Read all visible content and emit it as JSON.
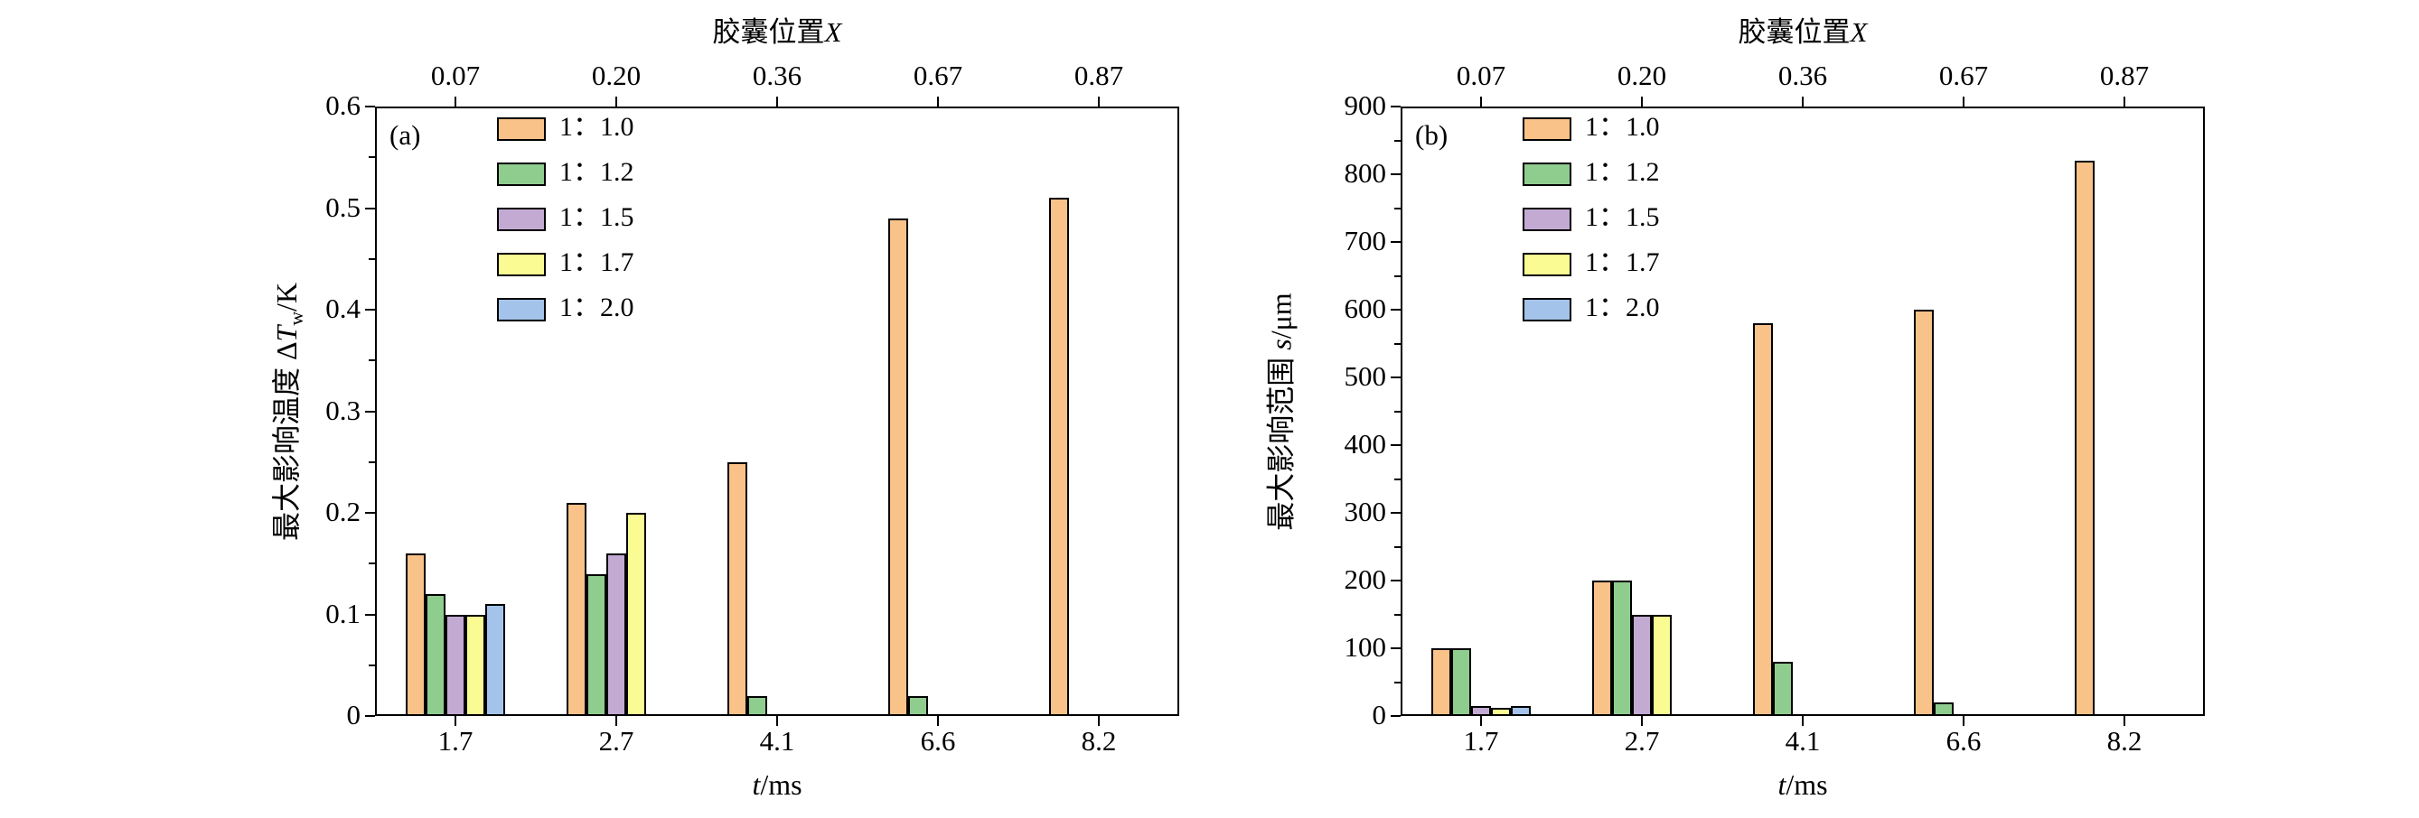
{
  "figure": {
    "background": "#ffffff"
  },
  "legend": {
    "position": "top-left-inside",
    "items": [
      {
        "label": "1：1.0",
        "color": "#F8C289"
      },
      {
        "label": "1：1.2",
        "color": "#8FCD8F"
      },
      {
        "label": "1：1.5",
        "color": "#C3AAD3"
      },
      {
        "label": "1：1.7",
        "color": "#FBFB93"
      },
      {
        "label": "1：2.0",
        "color": "#A4C3EA"
      }
    ]
  },
  "chart_data": [
    {
      "type": "bar",
      "panel_label": "(a)",
      "top_title": "胶囊位置X",
      "top_title_parts": [
        {
          "t": "胶囊位置"
        },
        {
          "i": "X"
        }
      ],
      "top_tick_labels": [
        "0.07",
        "0.20",
        "0.36",
        "0.67",
        "0.87"
      ],
      "categories": [
        "1.7",
        "2.7",
        "4.1",
        "6.6",
        "8.2"
      ],
      "xlabel": "t/ms",
      "xlabel_parts": [
        {
          "i": "t"
        },
        {
          "t": "/ms"
        }
      ],
      "ylabel": "最大影响温度 ΔTw/K",
      "ylabel_parts": [
        {
          "t": "最大影响温度 Δ"
        },
        {
          "i": "T"
        },
        {
          "sub": "w"
        },
        {
          "t": "/K"
        }
      ],
      "ylim": [
        0,
        0.6
      ],
      "yticks": [
        0,
        0.1,
        0.2,
        0.3,
        0.4,
        0.5,
        0.6
      ],
      "ytick_labels": [
        "0",
        "0.1",
        "0.2",
        "0.3",
        "0.4",
        "0.5",
        "0.6"
      ],
      "grid": false,
      "series": [
        {
          "name": "1：1.0",
          "values": [
            0.16,
            0.21,
            0.25,
            0.49,
            0.51
          ]
        },
        {
          "name": "1：1.2",
          "values": [
            0.12,
            0.14,
            0.02,
            0.02,
            0
          ]
        },
        {
          "name": "1：1.5",
          "values": [
            0.1,
            0.16,
            0,
            0,
            0
          ]
        },
        {
          "name": "1：1.7",
          "values": [
            0.1,
            0.2,
            0,
            0,
            0
          ]
        },
        {
          "name": "1：2.0",
          "values": [
            0.11,
            0,
            0,
            0,
            0
          ]
        }
      ]
    },
    {
      "type": "bar",
      "panel_label": "(b)",
      "top_title": "胶囊位置X",
      "top_title_parts": [
        {
          "t": "胶囊位置"
        },
        {
          "i": "X"
        }
      ],
      "top_tick_labels": [
        "0.07",
        "0.20",
        "0.36",
        "0.67",
        "0.87"
      ],
      "categories": [
        "1.7",
        "2.7",
        "4.1",
        "6.6",
        "8.2"
      ],
      "xlabel": "t/ms",
      "xlabel_parts": [
        {
          "i": "t"
        },
        {
          "t": "/ms"
        }
      ],
      "ylabel": "最大影响范围 s/μm",
      "ylabel_parts": [
        {
          "t": "最大影响范围 "
        },
        {
          "i": "s"
        },
        {
          "t": "/μm"
        }
      ],
      "ylim": [
        0,
        900
      ],
      "yticks": [
        0,
        100,
        200,
        300,
        400,
        500,
        600,
        700,
        800,
        900
      ],
      "ytick_labels": [
        "0",
        "100",
        "200",
        "300",
        "400",
        "500",
        "600",
        "700",
        "800",
        "900"
      ],
      "grid": false,
      "series": [
        {
          "name": "1：1.0",
          "values": [
            100,
            200,
            580,
            600,
            820
          ]
        },
        {
          "name": "1：1.2",
          "values": [
            100,
            200,
            80,
            20,
            0
          ]
        },
        {
          "name": "1：1.5",
          "values": [
            15,
            150,
            0,
            0,
            0
          ]
        },
        {
          "name": "1：1.7",
          "values": [
            12,
            150,
            0,
            0,
            0
          ]
        },
        {
          "name": "1：2.0",
          "values": [
            15,
            0,
            0,
            0,
            0
          ]
        }
      ]
    }
  ]
}
